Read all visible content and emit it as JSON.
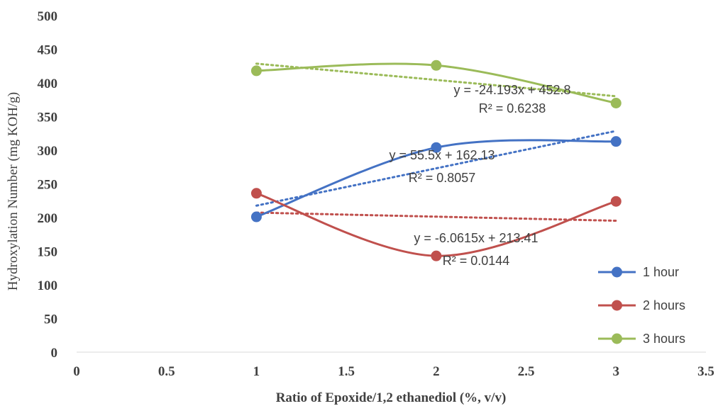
{
  "chart_data": {
    "type": "scatter",
    "xlabel": "Ratio of Epoxide/1,2 ethanediol (%, v/v)",
    "ylabel": "Hydroxylation Number (mg KOH/g)",
    "xlim": [
      0,
      3.5
    ],
    "ylim": [
      0,
      500
    ],
    "x_ticks": [
      "0",
      "0.5",
      "1",
      "1.5",
      "2",
      "2.5",
      "3",
      "3.5"
    ],
    "y_ticks": [
      "0",
      "50",
      "100",
      "150",
      "200",
      "250",
      "300",
      "350",
      "400",
      "450",
      "500"
    ],
    "grid": false,
    "legend_position": "bottom-right",
    "smoothed_lines": true,
    "series": [
      {
        "name": "1 hour",
        "color": "#4472C4",
        "x": [
          1,
          2,
          3
        ],
        "y": [
          201,
          304,
          313
        ],
        "trendline": {
          "slope": 55.5,
          "intercept": 162.13
        },
        "equation": "y = 55.5x + 162.13",
        "r2": "R² = 0.8057"
      },
      {
        "name": "2 hours",
        "color": "#C0504D",
        "x": [
          1,
          2,
          3
        ],
        "y": [
          236,
          143,
          224
        ],
        "trendline": {
          "slope": -6.0615,
          "intercept": 213.41
        },
        "equation": "y = -6.0615x + 213.41",
        "r2": "R² = 0.0144"
      },
      {
        "name": "3 hours",
        "color": "#9BBB59",
        "x": [
          1,
          2,
          3
        ],
        "y": [
          418,
          426,
          370
        ],
        "trendline": {
          "slope": -24.193,
          "intercept": 452.8
        },
        "equation": "y = -24.193x + 452.8",
        "r2": "R² = 0.6238"
      }
    ]
  }
}
